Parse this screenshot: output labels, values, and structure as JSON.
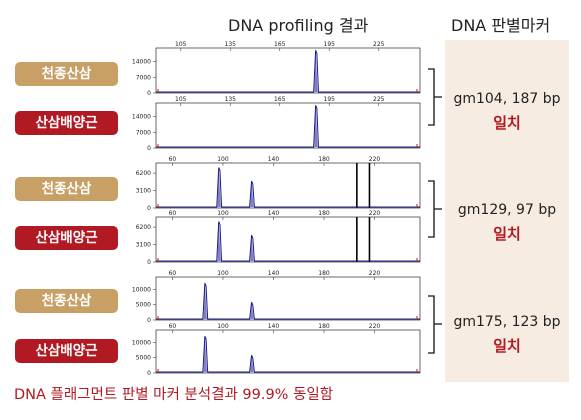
{
  "headers": {
    "left": "DNA profiling 결과",
    "right": "DNA 판별마커"
  },
  "labels": {
    "wild": "천종산삼",
    "cultivated": "산삼배양근"
  },
  "markers": [
    {
      "text": "gm104, 187 bp",
      "match": "일치"
    },
    {
      "text": "gm129, 97 bp",
      "match": "일치"
    },
    {
      "text": "gm175, 123 bp",
      "match": "일치"
    }
  ],
  "footer": "DNA 플래그먼트 판별 마커 분석결과 99.9% 동일함",
  "colors": {
    "trace": "#1a1a8c",
    "wild_label": "#c8a066",
    "cultivated_label": "#b21a23",
    "panel": "#f6ece1",
    "accent": "#b21a23"
  },
  "chart_data": [
    {
      "type": "line",
      "sample": "천종산삼",
      "marker": "gm104",
      "xlim": [
        90,
        250
      ],
      "ylim": [
        0,
        20000
      ],
      "x_ticks": [
        105,
        135,
        165,
        195,
        225
      ],
      "y_ticks": [
        0,
        7000,
        14000
      ],
      "peaks": [
        {
          "x": 187,
          "y": 19000
        }
      ],
      "markers_x": []
    },
    {
      "type": "line",
      "sample": "산삼배양근",
      "marker": "gm104",
      "xlim": [
        90,
        250
      ],
      "ylim": [
        0,
        20000
      ],
      "x_ticks": [
        105,
        135,
        165,
        195,
        225
      ],
      "y_ticks": [
        0,
        7000,
        14000
      ],
      "peaks": [
        {
          "x": 187,
          "y": 19000
        }
      ],
      "markers_x": []
    },
    {
      "type": "line",
      "sample": "천종산삼",
      "marker": "gm129",
      "xlim": [
        47,
        256
      ],
      "ylim": [
        0,
        8000
      ],
      "x_ticks": [
        60,
        100,
        140,
        180,
        220
      ],
      "y_ticks": [
        0,
        3100,
        6200
      ],
      "peaks": [
        {
          "x": 97,
          "y": 7200
        },
        {
          "x": 123,
          "y": 4800
        }
      ],
      "markers_x": [
        206,
        216
      ]
    },
    {
      "type": "line",
      "sample": "산삼배양근",
      "marker": "gm129",
      "xlim": [
        47,
        256
      ],
      "ylim": [
        0,
        8000
      ],
      "x_ticks": [
        60,
        100,
        140,
        180,
        220
      ],
      "y_ticks": [
        0,
        3100,
        6200
      ],
      "peaks": [
        {
          "x": 97,
          "y": 7200
        },
        {
          "x": 123,
          "y": 4800
        }
      ],
      "markers_x": [
        206,
        216
      ]
    },
    {
      "type": "line",
      "sample": "천종산삼",
      "marker": "gm175",
      "xlim": [
        47,
        256
      ],
      "ylim": [
        0,
        14000
      ],
      "x_ticks": [
        60,
        100,
        140,
        180,
        220
      ],
      "y_ticks": [
        0,
        5000,
        10000
      ],
      "peaks": [
        {
          "x": 86,
          "y": 12000
        },
        {
          "x": 123,
          "y": 5800
        }
      ],
      "markers_x": []
    },
    {
      "type": "line",
      "sample": "산삼배양근",
      "marker": "gm175",
      "xlim": [
        47,
        256
      ],
      "ylim": [
        0,
        14000
      ],
      "x_ticks": [
        60,
        100,
        140,
        180,
        220
      ],
      "y_ticks": [
        0,
        5000,
        10000
      ],
      "peaks": [
        {
          "x": 86,
          "y": 12000
        },
        {
          "x": 123,
          "y": 5800
        }
      ],
      "markers_x": []
    }
  ]
}
